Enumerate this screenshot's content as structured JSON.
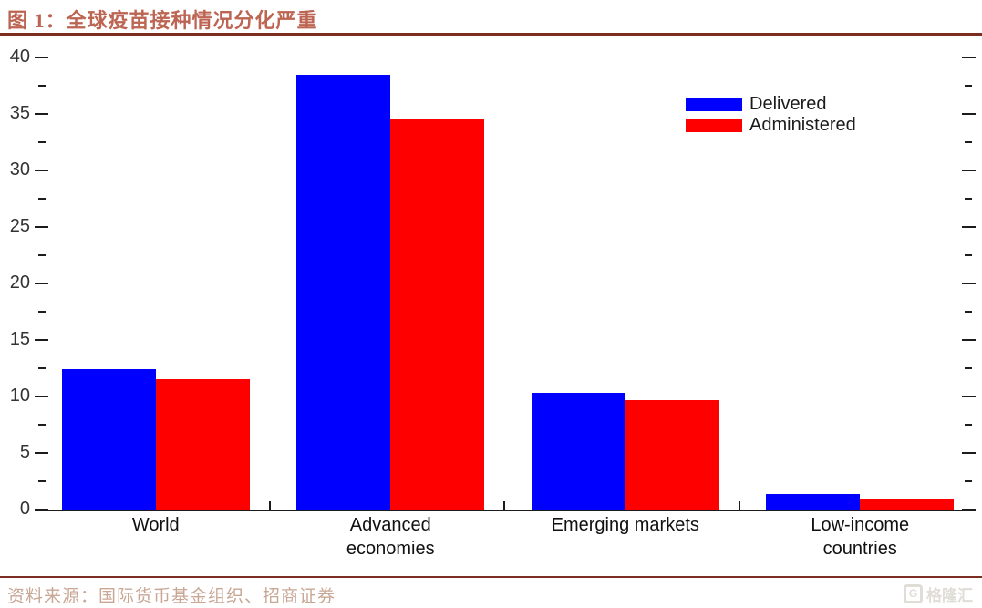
{
  "header": {
    "title": "图 1：全球疫苗接种情况分化严重"
  },
  "footer": {
    "source": "资料来源：国际货币基金组织、招商证券",
    "watermark_icon": "G",
    "watermark_text": "格隆汇"
  },
  "colors": {
    "title_text": "#bd6553",
    "rule": "#7b2d21",
    "source_text": "#c8a795",
    "axis": "#1c1c1c",
    "delivered_blue": "#0000ff",
    "administered_red": "#ff0000"
  },
  "chart_data": {
    "type": "bar",
    "title": "图 1：全球疫苗接种情况分化严重",
    "categories": [
      "World",
      "Advanced economies",
      "Emerging markets",
      "Low-income countries"
    ],
    "category_lines": [
      [
        "World"
      ],
      [
        "Advanced",
        "economies"
      ],
      [
        "Emerging markets"
      ],
      [
        "Low-income",
        "countries"
      ]
    ],
    "series": [
      {
        "name": "Delivered",
        "color": "#0000ff",
        "values": [
          12.4,
          38.5,
          10.3,
          1.4
        ]
      },
      {
        "name": "Administered",
        "color": "#ff0000",
        "values": [
          11.5,
          34.6,
          9.7,
          1.0
        ]
      }
    ],
    "xlabel": "",
    "ylabel": "",
    "ylim": [
      0,
      40
    ],
    "y_major_step": 5,
    "y_minor_step": 2.5,
    "grid": false,
    "legend_position": "upper-right"
  }
}
